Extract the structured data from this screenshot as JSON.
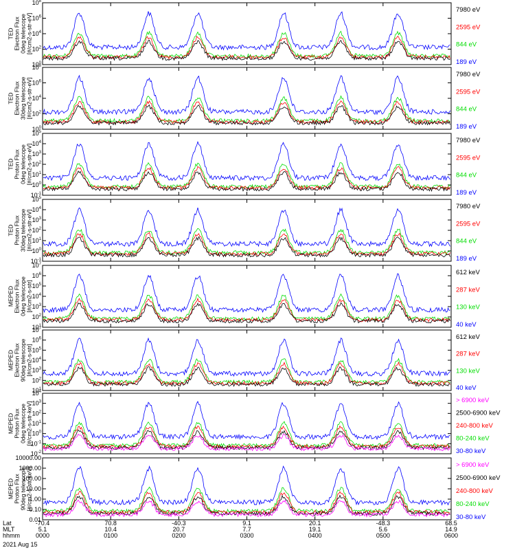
{
  "figure": {
    "date_label": "2021 Aug 15",
    "footer_rows": [
      {
        "label": "Lat",
        "values": [
          "-70.4",
          "70.8",
          "-40.3",
          "9.1",
          "20.1",
          "-48.3",
          "68.5"
        ]
      },
      {
        "label": "MLT",
        "values": [
          "5.1",
          "10.4",
          "20.7",
          "7.7",
          "19.1",
          "5.6",
          "14.9"
        ]
      },
      {
        "label": "hhmm",
        "values": [
          "0000",
          "0100",
          "0200",
          "0300",
          "0400",
          "0500",
          "0600"
        ]
      }
    ]
  },
  "colors": {
    "black": "#000000",
    "red": "#ff0000",
    "green": "#00dd00",
    "blue": "#0000ff",
    "magenta": "#ff00ff"
  },
  "chart_data": [
    {
      "type": "line",
      "log_y": true,
      "ylim": [
        1,
        100000000
      ],
      "ylabel": [
        "TED",
        "Electron Flux",
        "0deg telescope",
        "[#/cm2-s-str-eV]"
      ],
      "ytick_labels": [
        "10^0",
        "10^2",
        "10^4",
        "10^6",
        "10^8"
      ],
      "series": [
        {
          "name": "7980 eV",
          "color": "#000000"
        },
        {
          "name": "2595 eV",
          "color": "#ff0000"
        },
        {
          "name": "844 eV",
          "color": "#00dd00"
        },
        {
          "name": "189 eV",
          "color": "#0000ff"
        }
      ]
    },
    {
      "type": "line",
      "log_y": true,
      "ylim": [
        1,
        100000000
      ],
      "ylabel": [
        "TED",
        "Electron Flux",
        "30deg telescope",
        "[#/cm2-s-str-eV]"
      ],
      "ytick_labels": [
        "10^0",
        "10^2",
        "10^4",
        "10^6",
        "10^8"
      ],
      "series": [
        {
          "name": "7980 eV",
          "color": "#000000"
        },
        {
          "name": "2595 eV",
          "color": "#ff0000"
        },
        {
          "name": "844 eV",
          "color": "#00dd00"
        },
        {
          "name": "189 eV",
          "color": "#0000ff"
        }
      ]
    },
    {
      "type": "line",
      "log_y": true,
      "ylim": [
        0.1,
        100000
      ],
      "ylabel": [
        "TED",
        "Proton Flux",
        "0deg telescope",
        "[#/cm2-s-str-eV]"
      ],
      "ytick_labels": [
        "10^-1",
        "10^0",
        "10^1",
        "10^2",
        "10^3",
        "10^4",
        "10^5"
      ],
      "series": [
        {
          "name": "7980 eV",
          "color": "#000000"
        },
        {
          "name": "2595 eV",
          "color": "#ff0000"
        },
        {
          "name": "844 eV",
          "color": "#00dd00"
        },
        {
          "name": "189 eV",
          "color": "#0000ff"
        }
      ]
    },
    {
      "type": "line",
      "log_y": true,
      "ylim": [
        0.1,
        100000
      ],
      "ylabel": [
        "TED",
        "Proton Flux",
        "30deg telescope",
        "[#/cm2-s-str-eV]"
      ],
      "ytick_labels": [
        "10^-1",
        "10^0",
        "10^1",
        "10^2",
        "10^3",
        "10^4",
        "10^5"
      ],
      "series": [
        {
          "name": "7980 eV",
          "color": "#000000"
        },
        {
          "name": "2595 eV",
          "color": "#ff0000"
        },
        {
          "name": "844 eV",
          "color": "#00dd00"
        },
        {
          "name": "189 eV",
          "color": "#0000ff"
        }
      ]
    },
    {
      "type": "line",
      "log_y": true,
      "ylim": [
        10,
        10000000
      ],
      "ylabel": [
        "MEPED",
        "Electron Flux",
        "0deg telescope",
        "[#/cm2-s-str]"
      ],
      "ytick_labels": [
        "10^1",
        "10^2",
        "10^3",
        "10^4",
        "10^5",
        "10^6",
        "10^7"
      ],
      "series": [
        {
          "name": "612 keV",
          "color": "#000000"
        },
        {
          "name": "287 keV",
          "color": "#ff0000"
        },
        {
          "name": "130 keV",
          "color": "#00dd00"
        },
        {
          "name": "40 keV",
          "color": "#0000ff"
        }
      ]
    },
    {
      "type": "line",
      "log_y": true,
      "ylim": [
        10,
        10000000
      ],
      "ylabel": [
        "MEPED",
        "Electron Flux",
        "90deg telescope",
        "[#/cm2-s-str]"
      ],
      "ytick_labels": [
        "10^1",
        "10^2",
        "10^3",
        "10^4",
        "10^5",
        "10^6",
        "10^7"
      ],
      "series": [
        {
          "name": "612 keV",
          "color": "#000000"
        },
        {
          "name": "287 keV",
          "color": "#ff0000"
        },
        {
          "name": "130 keV",
          "color": "#00dd00"
        },
        {
          "name": "40 keV",
          "color": "#0000ff"
        }
      ]
    },
    {
      "type": "line",
      "log_y": true,
      "ylim": [
        0.01,
        10000
      ],
      "ylabel": [
        "MEPED",
        "Proton Flux",
        "0deg telescope",
        "[#/cm2-s-str-keV]"
      ],
      "ytick_labels": [
        "10^-2",
        "10^-1",
        "10^0",
        "10^1",
        "10^2",
        "10^3",
        "10^4"
      ],
      "series": [
        {
          "name": "> 6900 keV",
          "color": "#ff00ff"
        },
        {
          "name": "2500-6900 keV",
          "color": "#000000"
        },
        {
          "name": "240-800 keV",
          "color": "#ff0000"
        },
        {
          "name": "80-240 keV",
          "color": "#00dd00"
        },
        {
          "name": "30-80 keV",
          "color": "#0000ff"
        }
      ]
    },
    {
      "type": "line",
      "log_y": true,
      "ylim": [
        0.01,
        10000
      ],
      "ylabel": [
        "MEPED",
        "Proton Flux",
        "90deg telescope",
        "[#/cm2-s-str-keV]"
      ],
      "ytick_labels": [
        "10000.00",
        "1000.00",
        "100.00",
        "10.00",
        "1.00",
        "0.10",
        "0.01"
      ],
      "series": [
        {
          "name": "> 6900 keV",
          "color": "#ff00ff"
        },
        {
          "name": "2500-6900 keV",
          "color": "#000000"
        },
        {
          "name": "240-800 keV",
          "color": "#ff0000"
        },
        {
          "name": "80-240 keV",
          "color": "#00dd00"
        },
        {
          "name": "30-80 keV",
          "color": "#0000ff"
        }
      ]
    }
  ]
}
